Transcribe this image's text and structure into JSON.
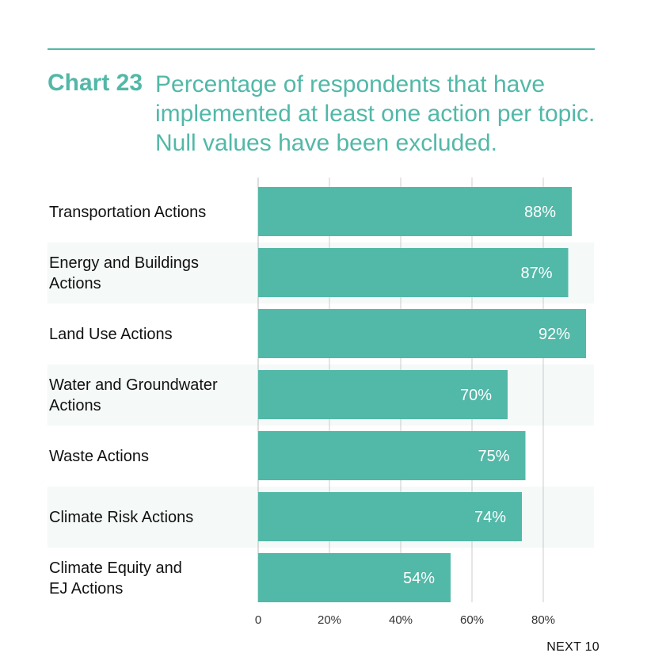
{
  "header": {
    "chart_number": "Chart 23",
    "title": "Percentage of respondents that have implemented at least one action per topic. Null values have been excluded."
  },
  "footer": {
    "source": "NEXT 10"
  },
  "colors": {
    "accent": "#52b8a8",
    "band": "#f5f9f8",
    "grid": "#cccccc"
  },
  "chart_data": {
    "type": "bar",
    "orientation": "horizontal",
    "title": "Percentage of respondents that have implemented at least one action per topic. Null values have been excluded.",
    "categories": [
      [
        "Transportation Actions"
      ],
      [
        "Energy and Buildings",
        "Actions"
      ],
      [
        "Land Use Actions"
      ],
      [
        "Water and Groundwater",
        "Actions"
      ],
      [
        "Waste Actions"
      ],
      [
        "Climate Risk Actions"
      ],
      [
        "Climate Equity and",
        "EJ Actions"
      ]
    ],
    "values": [
      88,
      87,
      92,
      70,
      75,
      74,
      54
    ],
    "value_labels": [
      "88%",
      "87%",
      "92%",
      "70%",
      "75%",
      "74%",
      "54%"
    ],
    "xlim": [
      0,
      100
    ],
    "x_ticks": [
      0,
      20,
      40,
      60,
      80
    ],
    "x_tick_labels": [
      "0",
      "20%",
      "40%",
      "60%",
      "80%"
    ],
    "grid": true,
    "xlabel": "",
    "ylabel": ""
  }
}
